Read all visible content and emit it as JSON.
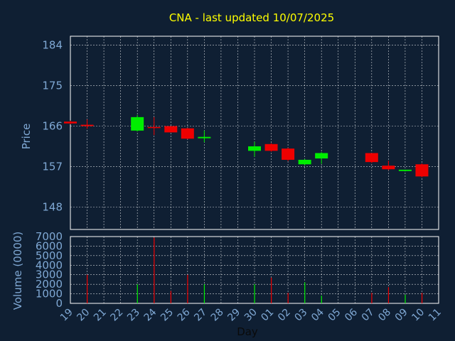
{
  "chart_data": {
    "type": "candlestick",
    "title": "CNA - last updated 10/07/2025",
    "price_panel": {
      "ylabel": "Price",
      "ylim": [
        143,
        186
      ],
      "yticks": [
        148,
        157,
        166,
        175,
        184
      ],
      "grid": true
    },
    "volume_panel": {
      "ylabel": "Volume (0000)",
      "ylim": [
        0,
        7000
      ],
      "yticks": [
        0,
        1000,
        2000,
        3000,
        4000,
        5000,
        6000,
        7000
      ],
      "grid": true
    },
    "xlabel": "Day",
    "xlim": [
      19,
      41
    ],
    "x_tick_labels": [
      "19",
      "20",
      "21",
      "22",
      "23",
      "24",
      "25",
      "26",
      "27",
      "28",
      "29",
      "30",
      "01",
      "02",
      "03",
      "04",
      "05",
      "06",
      "07",
      "08",
      "09",
      "10",
      "11"
    ],
    "candles": [
      {
        "x": 19,
        "open": 167.0,
        "high": 167.2,
        "low": 166.4,
        "close": 166.6,
        "volume": 0
      },
      {
        "x": 20,
        "open": 166.3,
        "high": 167.5,
        "low": 165.4,
        "close": 166.0,
        "volume": 3000
      },
      {
        "x": 23,
        "open": 165.0,
        "high": 168.5,
        "low": 164.8,
        "close": 168.0,
        "volume": 2000
      },
      {
        "x": 24,
        "open": 165.8,
        "high": 168.0,
        "low": 164.0,
        "close": 165.6,
        "volume": 6900
      },
      {
        "x": 25,
        "open": 166.0,
        "high": 166.0,
        "low": 164.6,
        "close": 164.6,
        "volume": 1300
      },
      {
        "x": 26,
        "open": 165.5,
        "high": 165.6,
        "low": 163.1,
        "close": 163.2,
        "volume": 3000
      },
      {
        "x": 27,
        "open": 163.3,
        "high": 165.0,
        "low": 162.4,
        "close": 163.6,
        "volume": 2000
      },
      {
        "x": 30,
        "open": 160.5,
        "high": 162.5,
        "low": 159.2,
        "close": 161.5,
        "volume": 2000
      },
      {
        "x": 31,
        "open": 162.0,
        "high": 162.2,
        "low": 160.3,
        "close": 160.5,
        "volume": 2700
      },
      {
        "x": 32,
        "open": 161.0,
        "high": 161.2,
        "low": 158.2,
        "close": 158.5,
        "volume": 1100
      },
      {
        "x": 33,
        "open": 157.5,
        "high": 158.7,
        "low": 157.3,
        "close": 158.5,
        "volume": 2200
      },
      {
        "x": 34,
        "open": 158.8,
        "high": 160.2,
        "low": 157.6,
        "close": 160.0,
        "volume": 800
      },
      {
        "x": 37,
        "open": 160.0,
        "high": 160.0,
        "low": 157.8,
        "close": 158.0,
        "volume": 1100
      },
      {
        "x": 38,
        "open": 157.2,
        "high": 158.3,
        "low": 156.2,
        "close": 156.4,
        "volume": 1700
      },
      {
        "x": 39,
        "open": 156.0,
        "high": 156.3,
        "low": 155.9,
        "close": 156.3,
        "volume": 900
      },
      {
        "x": 40,
        "open": 157.5,
        "high": 157.7,
        "low": 154.6,
        "close": 154.8,
        "volume": 1100
      }
    ],
    "colors": {
      "background": "#0f1f33",
      "up": "#00ee00",
      "down": "#ee0000",
      "frame": "#ffffff",
      "grid": "#ffffff",
      "title": "#ffff00",
      "label": "#7fa8d4"
    }
  }
}
